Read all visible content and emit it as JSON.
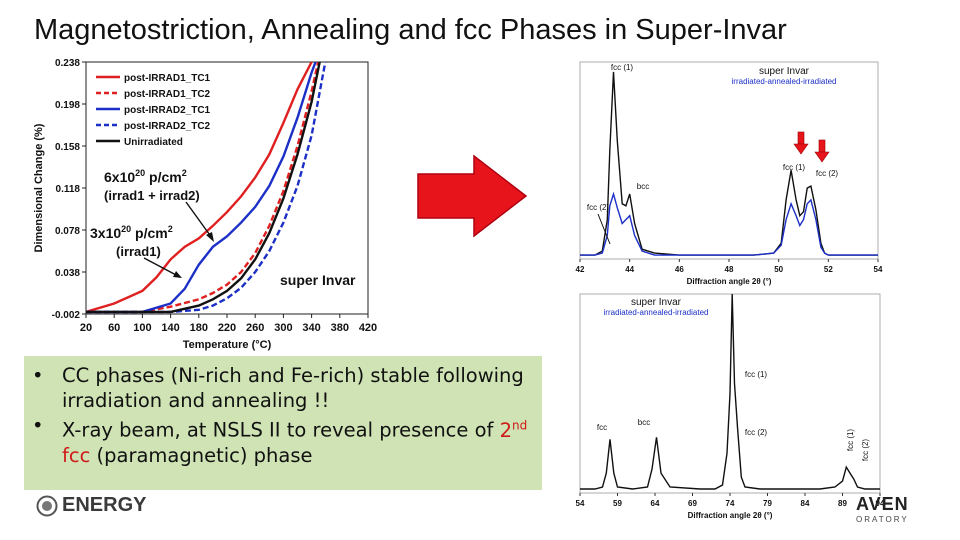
{
  "title": "Magnetostriction, Annealing and fcc Phases in Super-Invar",
  "colors": {
    "red": "#e02020",
    "blue": "#1c2fc7",
    "black": "#111111",
    "arrow": "#e8141c",
    "bullet_bg": "#cfe3b4"
  },
  "icons": {
    "arrow": "right-arrow-icon",
    "logo_left": "doe-seal-icon"
  },
  "bullets": [
    {
      "text": "CC phases (Ni-rich and Fe-rich) stable following irradiation and annealing !!"
    },
    {
      "prefix": "X-ray beam, at NSLS II to reveal presence of ",
      "highlight_sup_base": "2",
      "highlight_sup": "nd",
      "highlight_rest": " fcc",
      "suffix": " (paramagnetic) phase"
    }
  ],
  "logos": {
    "left_text": "ENERGY",
    "right_top": "AVEN",
    "right_bottom": "ORATORY"
  },
  "chart_data": [
    {
      "type": "line",
      "title": "",
      "xlabel": "Temperature (°C)",
      "ylabel": "Dimensional Change (%)",
      "xlim": [
        20,
        420
      ],
      "ylim": [
        -0.002,
        0.238
      ],
      "xticks": [
        20,
        60,
        100,
        140,
        180,
        220,
        260,
        300,
        340,
        380,
        420
      ],
      "yticks": [
        -0.002,
        0.038,
        0.078,
        0.118,
        0.158,
        0.198,
        0.238
      ],
      "ytick_labels": [
        "-0.002",
        "0.038",
        "0.078",
        "0.118",
        "0.158",
        "0.198",
        "0.238"
      ],
      "grid": false,
      "legend": "top-left",
      "series": [
        {
          "name": "post-IRRAD1_TC1",
          "style": "solid",
          "color": "#e02020",
          "x": [
            20,
            60,
            100,
            120,
            140,
            160,
            180,
            200,
            220,
            240,
            260,
            280,
            300,
            320,
            340,
            350
          ],
          "y": [
            0.0,
            0.008,
            0.02,
            0.033,
            0.05,
            0.062,
            0.07,
            0.082,
            0.095,
            0.11,
            0.128,
            0.15,
            0.18,
            0.212,
            0.238,
            0.25
          ]
        },
        {
          "name": "post-IRRAD1_TC2",
          "style": "dashed",
          "color": "#e02020",
          "x": [
            20,
            100,
            140,
            180,
            200,
            220,
            240,
            260,
            280,
            300,
            320,
            340,
            350
          ],
          "y": [
            0.0,
            0.0,
            0.005,
            0.012,
            0.018,
            0.026,
            0.038,
            0.056,
            0.082,
            0.115,
            0.158,
            0.21,
            0.24
          ]
        },
        {
          "name": "post-IRRAD2_TC1",
          "style": "solid",
          "color": "#1c2fc7",
          "x": [
            20,
            100,
            140,
            160,
            180,
            200,
            220,
            240,
            260,
            280,
            300,
            320,
            340,
            355
          ],
          "y": [
            0.0,
            0.0,
            0.008,
            0.022,
            0.045,
            0.062,
            0.072,
            0.085,
            0.1,
            0.12,
            0.148,
            0.185,
            0.228,
            0.255
          ]
        },
        {
          "name": "post-IRRAD2_TC2",
          "style": "dashed",
          "color": "#1c2fc7",
          "x": [
            20,
            140,
            180,
            200,
            220,
            240,
            260,
            280,
            300,
            320,
            340,
            360
          ],
          "y": [
            0.0,
            0.0,
            0.002,
            0.006,
            0.013,
            0.023,
            0.038,
            0.058,
            0.085,
            0.12,
            0.168,
            0.24
          ]
        },
        {
          "name": "Unirradiated",
          "style": "solid",
          "color": "#111111",
          "x": [
            20,
            140,
            180,
            200,
            220,
            240,
            260,
            280,
            300,
            320,
            340,
            352
          ],
          "y": [
            0.0,
            0.0,
            0.006,
            0.012,
            0.02,
            0.032,
            0.05,
            0.075,
            0.108,
            0.15,
            0.2,
            0.24
          ]
        }
      ],
      "annotations": [
        {
          "base": "6x10",
          "sup": "20",
          "rest": " p/cm",
          "sup2": "2"
        },
        {
          "text": "(irrad1 + irrad2)"
        },
        {
          "base": "3x10",
          "sup": "20",
          "rest": " p/cm",
          "sup2": "2"
        },
        {
          "text": "(irrad1)"
        },
        {
          "text": "super Invar"
        }
      ]
    },
    {
      "type": "line",
      "title": "super Invar",
      "subtitle": "irradiated-annealed-irradiated",
      "xlabel": "Diffraction angle 2θ (°)",
      "xlim": [
        42,
        54
      ],
      "xticks": [
        42,
        44,
        46,
        48,
        50,
        52,
        54
      ],
      "grid": false,
      "peaks": [
        "fcc (1)",
        "fcc (2)",
        "bcc",
        "fcc (1)",
        "fcc (2)"
      ],
      "series": [
        {
          "name": "",
          "color": "#111111",
          "x": [
            42,
            42.6,
            42.9,
            43.1,
            43.2,
            43.35,
            43.5,
            43.7,
            43.85,
            44.0,
            44.2,
            44.5,
            45,
            46,
            47,
            48,
            49,
            49.8,
            50.1,
            50.3,
            50.5,
            50.7,
            50.85,
            51.0,
            51.15,
            51.3,
            51.5,
            51.7,
            51.85,
            52.0,
            52.2,
            52.5,
            53,
            54
          ],
          "y": [
            0.02,
            0.02,
            0.04,
            0.2,
            0.55,
            0.95,
            0.6,
            0.28,
            0.27,
            0.33,
            0.18,
            0.05,
            0.03,
            0.02,
            0.02,
            0.02,
            0.02,
            0.03,
            0.08,
            0.3,
            0.45,
            0.3,
            0.22,
            0.24,
            0.36,
            0.37,
            0.25,
            0.08,
            0.03,
            0.02,
            0.02,
            0.02,
            0.02,
            0.02
          ]
        },
        {
          "name": "",
          "color": "#1c2fc7",
          "x": [
            42,
            42.6,
            42.9,
            43.1,
            43.2,
            43.35,
            43.5,
            43.7,
            43.85,
            44.0,
            44.2,
            44.5,
            45,
            46,
            47,
            48,
            49,
            49.8,
            50.1,
            50.3,
            50.5,
            50.7,
            50.85,
            51.0,
            51.15,
            51.3,
            51.5,
            51.7,
            51.85,
            52.0,
            52.2,
            52.5,
            53,
            54
          ],
          "y": [
            0.02,
            0.02,
            0.03,
            0.12,
            0.27,
            0.33,
            0.26,
            0.18,
            0.2,
            0.22,
            0.12,
            0.04,
            0.02,
            0.02,
            0.02,
            0.02,
            0.02,
            0.03,
            0.07,
            0.2,
            0.28,
            0.22,
            0.17,
            0.2,
            0.28,
            0.3,
            0.2,
            0.06,
            0.03,
            0.02,
            0.02,
            0.02,
            0.02,
            0.02
          ]
        }
      ]
    },
    {
      "type": "line",
      "title": "super Invar",
      "subtitle": "irradiated-annealed-irradiated",
      "xlabel": "Diffraction angle 2θ (°)",
      "xlim": [
        54,
        94
      ],
      "xticks": [
        54,
        59,
        64,
        69,
        74,
        79,
        84,
        89,
        94
      ],
      "grid": false,
      "peaks": [
        "fcc",
        "bcc",
        "fcc (1)",
        "fcc (2)",
        "fcc (1)",
        "fcc (2)"
      ],
      "series": [
        {
          "name": "",
          "color": "#111111",
          "x": [
            54,
            56,
            57,
            57.5,
            58.0,
            58.5,
            59,
            61,
            63,
            63.6,
            64.2,
            64.8,
            66,
            70,
            72,
            73,
            73.6,
            74.0,
            74.3,
            74.6,
            75.0,
            75.5,
            76,
            78,
            82,
            86,
            88,
            89,
            89.5,
            90.0,
            90.5,
            91,
            92,
            94
          ],
          "y": [
            0.02,
            0.02,
            0.03,
            0.1,
            0.27,
            0.1,
            0.03,
            0.02,
            0.03,
            0.12,
            0.28,
            0.1,
            0.03,
            0.02,
            0.02,
            0.04,
            0.2,
            0.5,
            1.0,
            0.55,
            0.33,
            0.08,
            0.03,
            0.02,
            0.02,
            0.02,
            0.03,
            0.06,
            0.13,
            0.1,
            0.07,
            0.03,
            0.02,
            0.02
          ]
        }
      ]
    }
  ]
}
